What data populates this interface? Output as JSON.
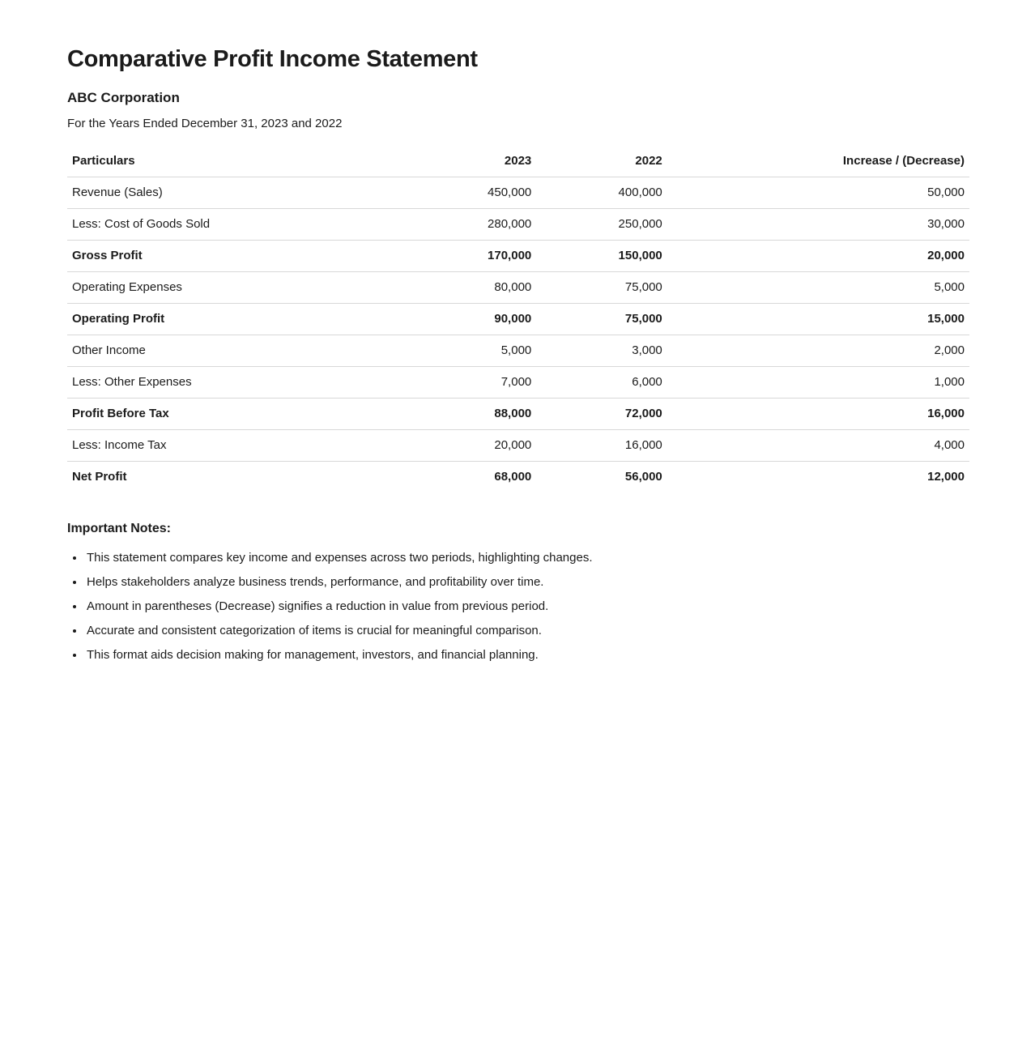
{
  "header": {
    "title": "Comparative Profit Income Statement",
    "company": "ABC Corporation",
    "period": "For the Years Ended December 31, 2023 and 2022"
  },
  "table": {
    "columns": [
      "Particulars",
      "2023",
      "2022",
      "Increase / (Decrease)"
    ],
    "rows": [
      {
        "label": "Revenue (Sales)",
        "y2023": "450,000",
        "y2022": "400,000",
        "change": "50,000",
        "bold": false
      },
      {
        "label": "Less: Cost of Goods Sold",
        "y2023": "280,000",
        "y2022": "250,000",
        "change": "30,000",
        "bold": false
      },
      {
        "label": "Gross Profit",
        "y2023": "170,000",
        "y2022": "150,000",
        "change": "20,000",
        "bold": true
      },
      {
        "label": "Operating Expenses",
        "y2023": "80,000",
        "y2022": "75,000",
        "change": "5,000",
        "bold": false
      },
      {
        "label": "Operating Profit",
        "y2023": "90,000",
        "y2022": "75,000",
        "change": "15,000",
        "bold": true
      },
      {
        "label": "Other Income",
        "y2023": "5,000",
        "y2022": "3,000",
        "change": "2,000",
        "bold": false
      },
      {
        "label": "Less: Other Expenses",
        "y2023": "7,000",
        "y2022": "6,000",
        "change": "1,000",
        "bold": false
      },
      {
        "label": "Profit Before Tax",
        "y2023": "88,000",
        "y2022": "72,000",
        "change": "16,000",
        "bold": true
      },
      {
        "label": "Less: Income Tax",
        "y2023": "20,000",
        "y2022": "16,000",
        "change": "4,000",
        "bold": false
      },
      {
        "label": "Net Profit",
        "y2023": "68,000",
        "y2022": "56,000",
        "change": "12,000",
        "bold": true
      }
    ]
  },
  "notes": {
    "heading": "Important Notes:",
    "items": [
      "This statement compares key income and expenses across two periods, highlighting changes.",
      "Helps stakeholders analyze business trends, performance, and profitability over time.",
      "Amount in parentheses (Decrease) signifies a reduction in value from previous period.",
      "Accurate and consistent categorization of items is crucial for meaningful comparison.",
      "This format aids decision making for management, investors, and financial planning."
    ]
  },
  "colors": {
    "text": "#1b1b1b",
    "border": "#d8d8d8",
    "background": "#ffffff"
  }
}
